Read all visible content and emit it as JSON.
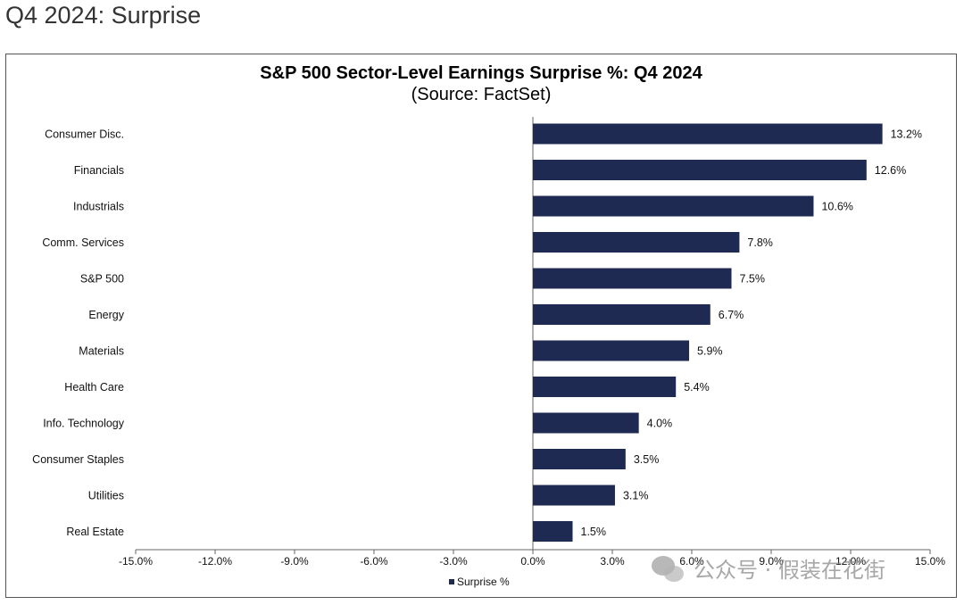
{
  "page": {
    "heading": "Q4 2024: Surprise"
  },
  "watermark": {
    "text": "公众号 · 假装在花街"
  },
  "colors": {
    "bar": "#1f2a52",
    "axis": "#666666"
  },
  "chart_data": {
    "type": "bar",
    "orientation": "horizontal",
    "title": "S&P 500 Sector-Level Earnings Surprise %: Q4 2024",
    "subtitle": "(Source: FactSet)",
    "categories": [
      "Consumer Disc.",
      "Financials",
      "Industrials",
      "Comm. Services",
      "S&P 500",
      "Energy",
      "Materials",
      "Health Care",
      "Info. Technology",
      "Consumer Staples",
      "Utilities",
      "Real Estate"
    ],
    "series": [
      {
        "name": "Surprise %",
        "values": [
          13.2,
          12.6,
          10.6,
          7.8,
          7.5,
          6.7,
          5.9,
          5.4,
          4.0,
          3.5,
          3.1,
          1.5
        ],
        "labels": [
          "13.2%",
          "12.6%",
          "10.6%",
          "7.8%",
          "7.5%",
          "6.7%",
          "5.9%",
          "5.4%",
          "4.0%",
          "3.5%",
          "3.1%",
          "1.5%"
        ]
      }
    ],
    "xlim": [
      -15,
      15
    ],
    "x_ticks": [
      -15,
      -12,
      -9,
      -6,
      -3,
      0,
      3,
      6,
      9,
      12,
      15
    ],
    "x_tick_labels": [
      "-15.0%",
      "-12.0%",
      "-9.0%",
      "-6.0%",
      "-3.0%",
      "0.0%",
      "3.0%",
      "6.0%",
      "9.0%",
      "12.0%",
      "15.0%"
    ],
    "grid": false,
    "legend": {
      "position": "bottom-center",
      "entries": [
        "Surprise %"
      ]
    }
  }
}
